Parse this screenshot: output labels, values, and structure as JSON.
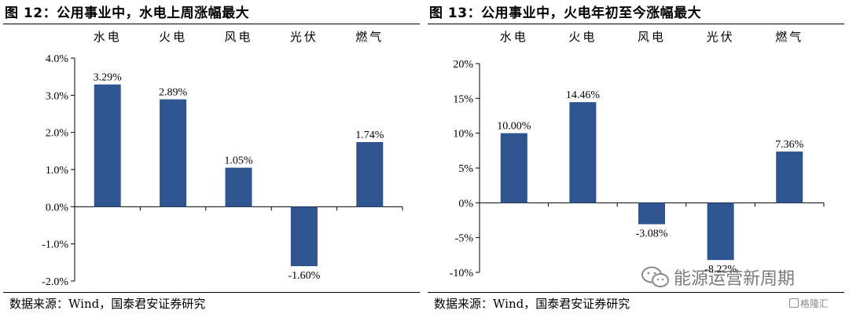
{
  "charts": [
    {
      "figure_title": "图 12：公用事业中，水电上周涨幅最大",
      "source": "数据来源：Wind，国泰君安证券研究"
    },
    {
      "figure_title": "图 13：公用事业中，火电年初至今涨幅最大",
      "source": "数据来源：Wind，国泰君安证券研究"
    }
  ],
  "watermark": {
    "text": "能源运营新周期",
    "logo_text": "格隆汇"
  },
  "colors": {
    "bar": "#2e5590",
    "axis": "#000000"
  },
  "chart_data": [
    {
      "type": "bar",
      "categories": [
        "水电",
        "火电",
        "风电",
        "光伏",
        "燃气"
      ],
      "values": [
        3.29,
        2.89,
        1.05,
        -1.6,
        1.74
      ],
      "value_labels": [
        "3.29%",
        "2.89%",
        "1.05%",
        "-1.60%",
        "1.74%"
      ],
      "ylim": [
        -2.0,
        4.0
      ],
      "yticks": [
        4.0,
        3.0,
        2.0,
        1.0,
        0.0,
        -1.0,
        -2.0
      ],
      "ytick_labels": [
        "4.0%",
        "3.0%",
        "2.0%",
        "1.0%",
        "0.0%",
        "-1.0%",
        "-2.0%"
      ],
      "category_position": "top",
      "grid": false,
      "title": "",
      "xlabel": "",
      "ylabel": ""
    },
    {
      "type": "bar",
      "categories": [
        "水电",
        "火电",
        "风电",
        "光伏",
        "燃气"
      ],
      "values": [
        10.0,
        14.46,
        -3.08,
        -8.22,
        7.36
      ],
      "value_labels": [
        "10.00%",
        "14.46%",
        "-3.08%",
        "-8.22%",
        "7.36%"
      ],
      "ylim": [
        -10,
        20
      ],
      "yticks": [
        20,
        15,
        10,
        5,
        0,
        -5,
        -10
      ],
      "ytick_labels": [
        "20%",
        "15%",
        "10%",
        "5%",
        "0%",
        "-5%",
        "-10%"
      ],
      "category_position": "top",
      "grid": false,
      "title": "",
      "xlabel": "",
      "ylabel": ""
    }
  ]
}
